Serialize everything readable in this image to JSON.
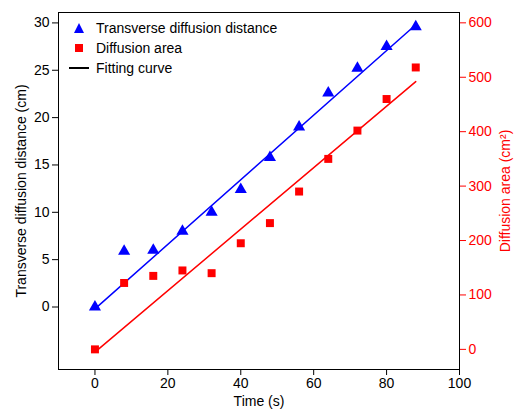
{
  "chart_data": {
    "type": "scatter",
    "x_label": "Time (s)",
    "y_label": "Transverse diffusion distance (cm)",
    "y2_label": "Diffusion area (cm²)",
    "xlim": [
      -10,
      100
    ],
    "xticks": [
      0,
      20,
      40,
      60,
      80,
      100
    ],
    "ylim": [
      -6.6,
      31.1
    ],
    "yticks": [
      0,
      5,
      10,
      15,
      20,
      25,
      30
    ],
    "y2lim": [
      -37,
      619
    ],
    "y2ticks": [
      0,
      100,
      200,
      300,
      400,
      500,
      600
    ],
    "legend": "upper left",
    "series": [
      {
        "name": "Transverse diffusion distance",
        "type": "scatter",
        "marker": "triangle",
        "color": "#0000ff",
        "x": [
          0,
          8,
          16,
          24,
          32,
          40,
          48,
          56,
          64,
          72,
          80,
          88
        ],
        "values": [
          0,
          5.9,
          6,
          8,
          10,
          12.4,
          15.8,
          19,
          22.6,
          25.2,
          27.5,
          29.6
        ]
      },
      {
        "name": "Diffusion area",
        "type": "scatter",
        "marker": "square",
        "color": "#ff0000",
        "axis": "y2",
        "x": [
          0,
          8,
          16,
          24,
          32,
          40,
          48,
          56,
          64,
          72,
          80,
          88
        ],
        "values": [
          0,
          122,
          135,
          145,
          140,
          195,
          232,
          290,
          350,
          402,
          460,
          518
        ]
      },
      {
        "name": "Fitting curve",
        "type": "line",
        "color": "#000000",
        "lines": [
          {
            "color": "#0000ff",
            "x": [
              0,
              88
            ],
            "values": [
              -0.2,
              29.8
            ]
          },
          {
            "color": "#ff0000",
            "axis": "y2",
            "x": [
              0,
              88
            ],
            "values": [
              -5,
              492
            ]
          }
        ]
      }
    ]
  }
}
